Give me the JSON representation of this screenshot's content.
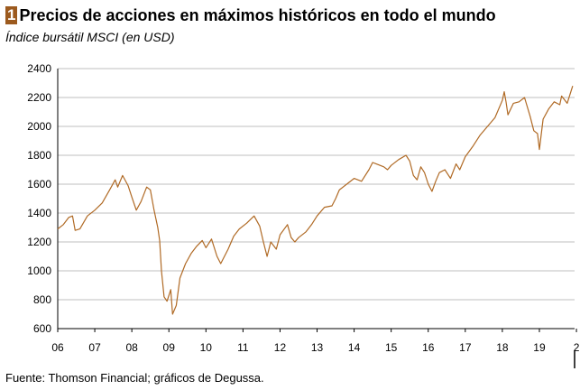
{
  "badge": "1",
  "title": "Precios de acciones en máximos históricos en todo el mundo",
  "subtitle": "Índice bursátil MSCI (en USD)",
  "source": "Fuente: Thomson Financial; gráficos de Degussa.",
  "colors": {
    "line": "#b06a25",
    "badge": "#9c5a1e",
    "grid": "#bfbfbf"
  },
  "chart_data": {
    "type": "line",
    "title": "Precios de acciones en máximos históricos en todo el mundo",
    "subtitle": "Índice bursátil MSCI (en USD)",
    "xlabel": "",
    "ylabel": "",
    "xlim": [
      2006,
      2019.95
    ],
    "ylim": [
      600,
      2400
    ],
    "grid": "horizontal",
    "x_tick_labels": [
      "06",
      "07",
      "08",
      "09",
      "10",
      "11",
      "12",
      "13",
      "14",
      "15",
      "16",
      "17",
      "18",
      "19",
      "2"
    ],
    "y_ticks": [
      600,
      800,
      1000,
      1200,
      1400,
      1600,
      1800,
      2000,
      2200,
      2400
    ],
    "series": [
      {
        "x": [
          2006.0,
          2006.15,
          2006.3,
          2006.4,
          2006.47,
          2006.6,
          2006.8,
          2007.0,
          2007.2,
          2007.4,
          2007.55,
          2007.62,
          2007.75,
          2007.9,
          2008.0,
          2008.12,
          2008.25,
          2008.4,
          2008.5,
          2008.6,
          2008.7,
          2008.75,
          2008.8,
          2008.87,
          2008.95,
          2009.05,
          2009.1,
          2009.2,
          2009.3,
          2009.45,
          2009.6,
          2009.75,
          2009.9,
          2010.0,
          2010.15,
          2010.3,
          2010.4,
          2010.5,
          2010.6,
          2010.75,
          2010.9,
          2011.1,
          2011.3,
          2011.45,
          2011.55,
          2011.65,
          2011.75,
          2011.9,
          2012.0,
          2012.2,
          2012.3,
          2012.4,
          2012.5,
          2012.7,
          2012.85,
          2013.0,
          2013.2,
          2013.4,
          2013.5,
          2013.6,
          2013.8,
          2014.0,
          2014.2,
          2014.4,
          2014.5,
          2014.6,
          2014.8,
          2014.9,
          2015.0,
          2015.2,
          2015.4,
          2015.5,
          2015.6,
          2015.7,
          2015.8,
          2015.9,
          2016.0,
          2016.1,
          2016.2,
          2016.3,
          2016.45,
          2016.6,
          2016.75,
          2016.85,
          2017.0,
          2017.2,
          2017.4,
          2017.6,
          2017.8,
          2018.0,
          2018.05,
          2018.1,
          2018.15,
          2018.3,
          2018.45,
          2018.6,
          2018.75,
          2018.85,
          2018.95,
          2019.0,
          2019.1,
          2019.25,
          2019.4,
          2019.55,
          2019.6,
          2019.75,
          2019.9
        ],
        "y": [
          1290,
          1320,
          1370,
          1380,
          1280,
          1290,
          1380,
          1420,
          1470,
          1560,
          1630,
          1580,
          1660,
          1590,
          1510,
          1420,
          1480,
          1580,
          1560,
          1420,
          1300,
          1210,
          1000,
          820,
          790,
          870,
          700,
          760,
          950,
          1050,
          1120,
          1170,
          1210,
          1160,
          1220,
          1100,
          1050,
          1100,
          1150,
          1240,
          1290,
          1330,
          1380,
          1310,
          1200,
          1100,
          1200,
          1150,
          1250,
          1320,
          1230,
          1200,
          1230,
          1270,
          1320,
          1380,
          1440,
          1450,
          1500,
          1560,
          1600,
          1640,
          1620,
          1700,
          1750,
          1740,
          1720,
          1700,
          1730,
          1770,
          1800,
          1760,
          1660,
          1630,
          1720,
          1680,
          1600,
          1550,
          1620,
          1680,
          1700,
          1640,
          1740,
          1700,
          1790,
          1860,
          1940,
          2000,
          2060,
          2180,
          2240,
          2170,
          2080,
          2160,
          2170,
          2200,
          2070,
          1970,
          1950,
          1840,
          2050,
          2120,
          2170,
          2150,
          2210,
          2160,
          2280
        ]
      }
    ]
  }
}
